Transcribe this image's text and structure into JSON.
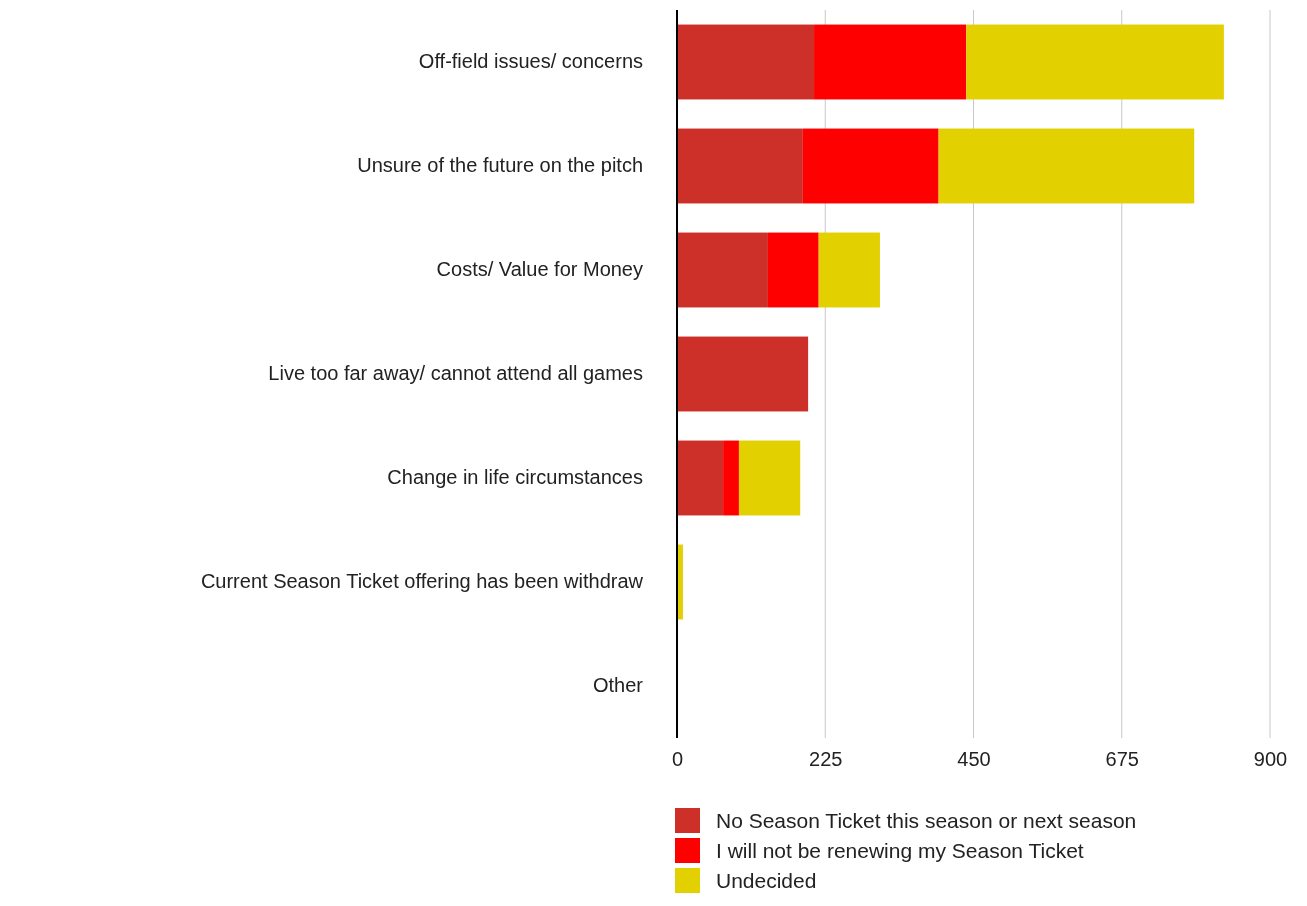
{
  "chart_data": {
    "type": "bar",
    "orientation": "horizontal",
    "stacked": true,
    "categories": [
      "Off-field issues/ concerns",
      "Unsure of the future on the pitch",
      "Costs/ Value for Money",
      "Live too far away/ cannot attend all games",
      "Change in life circumstances",
      "Current Season Ticket offering has been withdraw",
      "Other"
    ],
    "series": [
      {
        "name": "No Season Ticket this season or next season",
        "color": "#cc3029",
        "values": [
          208,
          191,
          138,
          199,
          70,
          0,
          0
        ]
      },
      {
        "name": "I will not be renewing my Season Ticket",
        "color": "#ff0000",
        "values": [
          231,
          206,
          77,
          0,
          24,
          0,
          0
        ]
      },
      {
        "name": "Undecided",
        "color": "#e2d000",
        "values": [
          391,
          388,
          93,
          0,
          93,
          9,
          0
        ]
      }
    ],
    "xlim": [
      0,
      900
    ],
    "xticks": [
      0,
      225,
      450,
      675,
      900
    ],
    "grid": "x",
    "legend": "bottom"
  }
}
